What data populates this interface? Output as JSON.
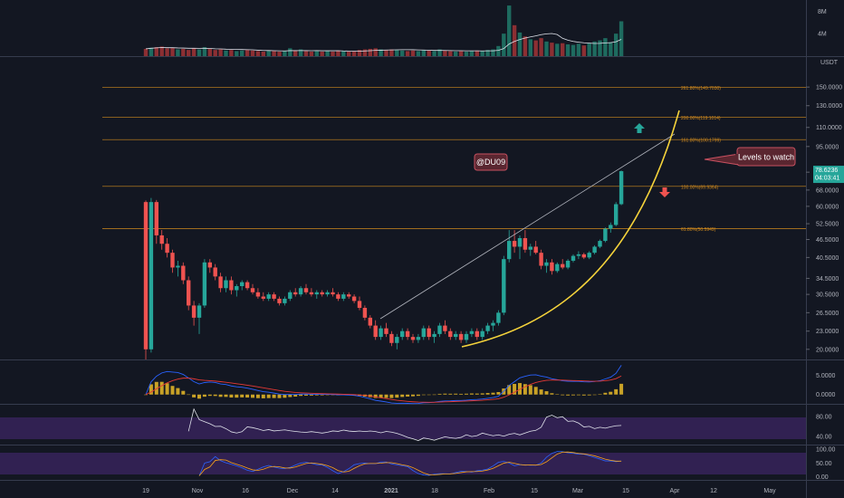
{
  "chart_data": {
    "type": "candlestick",
    "price_axis": {
      "unit": "USDT",
      "ticks": [
        "150.0000",
        "130.0000",
        "110.0000",
        "95.0000",
        "78.0000",
        "68.0000",
        "60.0000",
        "52.5000",
        "46.5000",
        "40.5000",
        "34.5000",
        "30.5000",
        "26.5000",
        "23.0000",
        "20.0000"
      ],
      "scale": "log",
      "range": [
        18.5,
        175
      ]
    },
    "volume_axis": {
      "ticks": [
        "8M",
        "4M"
      ],
      "range": [
        0,
        9.5
      ]
    },
    "macd_axis": {
      "ticks": [
        "5.0000",
        "0.0000"
      ],
      "range": [
        -2.2,
        8.5
      ]
    },
    "rsi_axis": {
      "ticks": [
        "80.00",
        "40.00"
      ],
      "range": [
        25,
        100
      ]
    },
    "stoch_axis": {
      "ticks": [
        "100.00",
        "50.00",
        "0.00"
      ],
      "range": [
        -8,
        110
      ]
    },
    "date_axis": [
      "19",
      "Nov",
      "16",
      "Dec",
      "14",
      "2021",
      "18",
      "Feb",
      "15",
      "Mar",
      "15",
      "Apr",
      "12",
      "May"
    ],
    "current_price": {
      "value": "78.6236",
      "countdown": "04:03:41",
      "color": "#26a69a"
    },
    "fib_levels": [
      {
        "label": "261.80%(149.7030)",
        "value": 149.7
      },
      {
        "label": "200.00%(119.1014)",
        "value": 119.1
      },
      {
        "label": "161.80%(100.1799)",
        "value": 100.18
      },
      {
        "label": "100.00%(69.9364)",
        "value": 69.94
      },
      {
        "label": "61.80%(50.5949)",
        "value": 50.59
      }
    ],
    "annotations": [
      {
        "text": "@DU09"
      },
      {
        "text": "Levels to watch"
      }
    ],
    "candles": [
      [
        62.0,
        62.8,
        18.5,
        20.0
      ],
      [
        20.0,
        64.0,
        19.5,
        62.0
      ],
      [
        62.0,
        63.0,
        45.0,
        48.0
      ],
      [
        48.0,
        50.0,
        43.0,
        45.0
      ],
      [
        45.0,
        47.0,
        40.5,
        42.0
      ],
      [
        42.0,
        43.0,
        36.0,
        37.5
      ],
      [
        37.5,
        39.5,
        35.0,
        38.0
      ],
      [
        38.0,
        39.0,
        33.0,
        34.0
      ],
      [
        34.0,
        35.0,
        27.0,
        28.0
      ],
      [
        28.0,
        29.0,
        24.0,
        25.5
      ],
      [
        25.5,
        28.5,
        22.5,
        28.0
      ],
      [
        28.0,
        40.0,
        27.5,
        39.0
      ],
      [
        39.0,
        40.0,
        36.0,
        37.5
      ],
      [
        37.5,
        38.5,
        34.0,
        35.0
      ],
      [
        35.0,
        36.0,
        31.0,
        32.0
      ],
      [
        32.0,
        35.0,
        31.0,
        34.0
      ],
      [
        34.0,
        35.0,
        30.5,
        31.5
      ],
      [
        31.5,
        33.0,
        30.0,
        32.5
      ],
      [
        32.5,
        34.0,
        31.5,
        33.5
      ],
      [
        33.5,
        34.0,
        31.5,
        32.0
      ],
      [
        32.0,
        33.0,
        30.5,
        31.0
      ],
      [
        31.0,
        32.0,
        29.5,
        30.0
      ],
      [
        30.0,
        31.0,
        29.0,
        29.5
      ],
      [
        29.5,
        31.0,
        29.0,
        30.5
      ],
      [
        30.5,
        31.0,
        29.0,
        29.5
      ],
      [
        29.5,
        30.0,
        28.0,
        28.5
      ],
      [
        28.5,
        30.0,
        28.0,
        29.5
      ],
      [
        29.5,
        31.5,
        29.0,
        31.0
      ],
      [
        31.0,
        32.0,
        30.0,
        30.5
      ],
      [
        30.5,
        32.5,
        30.0,
        32.0
      ],
      [
        32.0,
        33.0,
        30.5,
        31.0
      ],
      [
        31.0,
        32.0,
        30.0,
        30.5
      ],
      [
        30.5,
        31.5,
        29.5,
        31.0
      ],
      [
        31.0,
        31.5,
        30.0,
        30.5
      ],
      [
        30.5,
        31.5,
        30.0,
        31.0
      ],
      [
        31.0,
        32.0,
        30.0,
        30.5
      ],
      [
        30.5,
        31.0,
        29.0,
        29.5
      ],
      [
        29.5,
        31.0,
        29.0,
        30.5
      ],
      [
        30.5,
        31.0,
        29.5,
        30.0
      ],
      [
        30.0,
        30.5,
        28.5,
        29.0
      ],
      [
        29.0,
        30.0,
        27.0,
        27.5
      ],
      [
        27.5,
        28.0,
        25.0,
        25.5
      ],
      [
        25.5,
        26.0,
        23.5,
        24.0
      ],
      [
        24.0,
        25.0,
        21.5,
        22.0
      ],
      [
        22.0,
        24.0,
        21.5,
        23.5
      ],
      [
        23.5,
        24.5,
        22.0,
        22.5
      ],
      [
        22.5,
        23.0,
        20.5,
        21.0
      ],
      [
        21.0,
        22.5,
        20.0,
        22.0
      ],
      [
        22.0,
        23.5,
        21.5,
        23.0
      ],
      [
        23.0,
        23.5,
        21.5,
        22.0
      ],
      [
        22.0,
        22.5,
        21.0,
        21.5
      ],
      [
        21.5,
        22.5,
        21.0,
        22.0
      ],
      [
        22.0,
        24.0,
        21.5,
        23.5
      ],
      [
        23.5,
        24.0,
        21.5,
        22.0
      ],
      [
        22.0,
        23.0,
        21.0,
        22.5
      ],
      [
        22.5,
        24.5,
        22.0,
        24.0
      ],
      [
        24.0,
        25.0,
        22.5,
        23.0
      ],
      [
        23.0,
        23.5,
        21.5,
        22.0
      ],
      [
        22.0,
        23.0,
        21.5,
        22.5
      ],
      [
        22.5,
        23.0,
        21.0,
        21.5
      ],
      [
        21.5,
        23.0,
        21.0,
        22.5
      ],
      [
        22.5,
        23.5,
        22.0,
        23.0
      ],
      [
        23.0,
        23.5,
        21.5,
        22.0
      ],
      [
        22.0,
        23.5,
        21.5,
        23.0
      ],
      [
        23.0,
        24.5,
        22.5,
        24.0
      ],
      [
        24.0,
        25.0,
        23.0,
        24.5
      ],
      [
        24.5,
        27.0,
        24.0,
        26.5
      ],
      [
        26.5,
        41.0,
        26.0,
        40.0
      ],
      [
        40.0,
        50.0,
        39.0,
        46.0
      ],
      [
        46.0,
        50.0,
        42.0,
        44.0
      ],
      [
        44.0,
        48.0,
        40.0,
        47.0
      ],
      [
        47.0,
        50.0,
        42.0,
        43.0
      ],
      [
        43.0,
        45.0,
        41.0,
        44.0
      ],
      [
        44.0,
        46.0,
        41.5,
        42.0
      ],
      [
        42.0,
        43.0,
        37.0,
        38.0
      ],
      [
        38.0,
        40.0,
        36.0,
        39.0
      ],
      [
        39.0,
        40.0,
        35.5,
        36.5
      ],
      [
        36.5,
        39.0,
        36.0,
        38.5
      ],
      [
        38.5,
        40.0,
        37.0,
        37.5
      ],
      [
        37.5,
        40.0,
        37.0,
        39.5
      ],
      [
        39.5,
        41.5,
        39.0,
        41.0
      ],
      [
        41.0,
        42.5,
        40.0,
        41.5
      ],
      [
        41.5,
        42.0,
        40.0,
        40.5
      ],
      [
        40.5,
        42.5,
        40.0,
        42.0
      ],
      [
        42.0,
        44.5,
        41.5,
        44.0
      ],
      [
        44.0,
        46.5,
        43.5,
        46.0
      ],
      [
        46.0,
        51.0,
        45.5,
        50.5
      ],
      [
        50.5,
        53.0,
        49.0,
        52.0
      ],
      [
        52.0,
        62.0,
        51.5,
        61.0
      ],
      [
        61.0,
        79.0,
        60.5,
        78.6
      ]
    ],
    "volume": [
      1.3,
      1.5,
      1.6,
      1.7,
      1.4,
      1.5,
      1.2,
      1.3,
      1.1,
      1.4,
      1.2,
      1.6,
      1.3,
      1.1,
      1.2,
      1.0,
      1.1,
      0.9,
      1.0,
      1.1,
      1.0,
      0.9,
      0.8,
      1.0,
      0.9,
      0.8,
      0.9,
      1.4,
      1.0,
      1.2,
      0.9,
      0.8,
      0.9,
      0.8,
      0.9,
      0.8,
      1.0,
      0.9,
      0.8,
      0.9,
      1.1,
      1.2,
      1.3,
      1.4,
      1.2,
      1.1,
      1.2,
      1.1,
      1.0,
      0.9,
      1.0,
      0.9,
      1.1,
      1.0,
      0.9,
      1.2,
      1.0,
      0.9,
      0.8,
      0.9,
      0.8,
      0.9,
      1.0,
      0.9,
      1.1,
      1.2,
      1.8,
      4.0,
      9.0,
      5.5,
      4.2,
      3.5,
      3.0,
      2.8,
      3.2,
      2.6,
      2.4,
      2.2,
      2.3,
      2.1,
      2.0,
      2.2,
      1.9,
      2.3,
      2.6,
      2.8,
      3.2,
      2.5,
      4.0,
      6.2
    ],
    "series": [
      {
        "name": "volume-ma",
        "color": "#e0e3eb"
      },
      {
        "name": "macd-line",
        "color": "#2962ff"
      },
      {
        "name": "signal-line",
        "color": "#e53935"
      },
      {
        "name": "macd-histogram",
        "color": "#c9a227"
      },
      {
        "name": "rsi",
        "color": "#e0e3eb"
      },
      {
        "name": "stoch-k",
        "color": "#2962ff"
      },
      {
        "name": "stoch-d",
        "color": "#f7a21b"
      }
    ]
  }
}
